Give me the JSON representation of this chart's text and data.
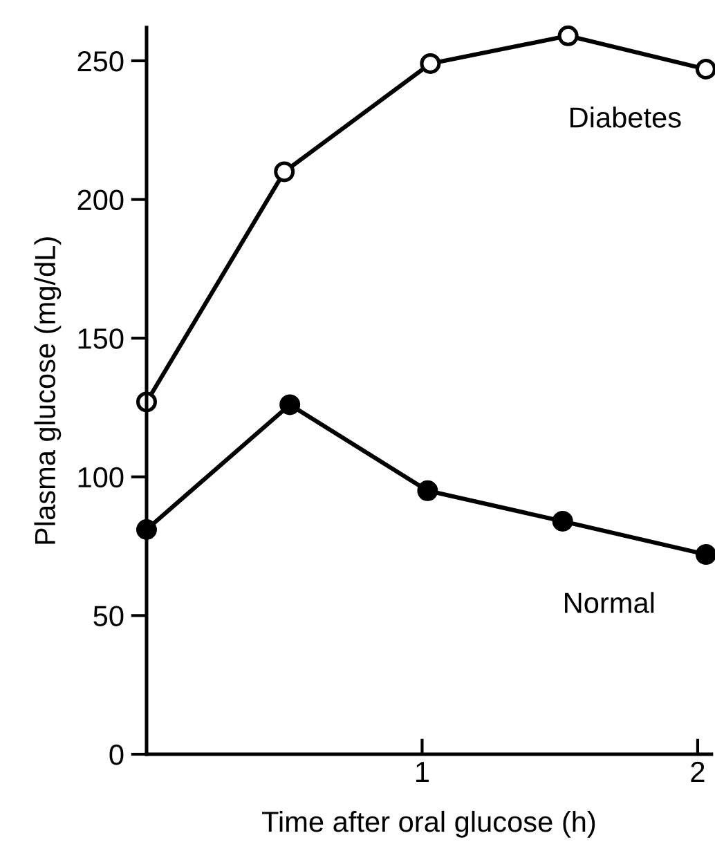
{
  "chart_data": {
    "type": "line",
    "xlabel": "Time after oral glucose (h)",
    "ylabel": "Plasma glucose (mg/dL)",
    "xlim": [
      0,
      2.05
    ],
    "ylim": [
      0,
      262
    ],
    "xticks": [
      1,
      2
    ],
    "yticks": [
      0,
      50,
      100,
      150,
      200,
      250
    ],
    "grid": false,
    "legend": false,
    "marker": "circle",
    "line_style": "solid",
    "series": [
      {
        "name": "Diabetes",
        "color": "#000000",
        "x": [
          0,
          0.5,
          1.03,
          1.53,
          2.03
        ],
        "values": [
          127,
          210,
          249,
          259,
          247
        ]
      },
      {
        "name": "Normal",
        "color": "#000000",
        "x": [
          0,
          0.52,
          1.02,
          1.51,
          2.03
        ],
        "values": [
          81,
          126,
          95,
          84,
          72
        ]
      }
    ]
  }
}
